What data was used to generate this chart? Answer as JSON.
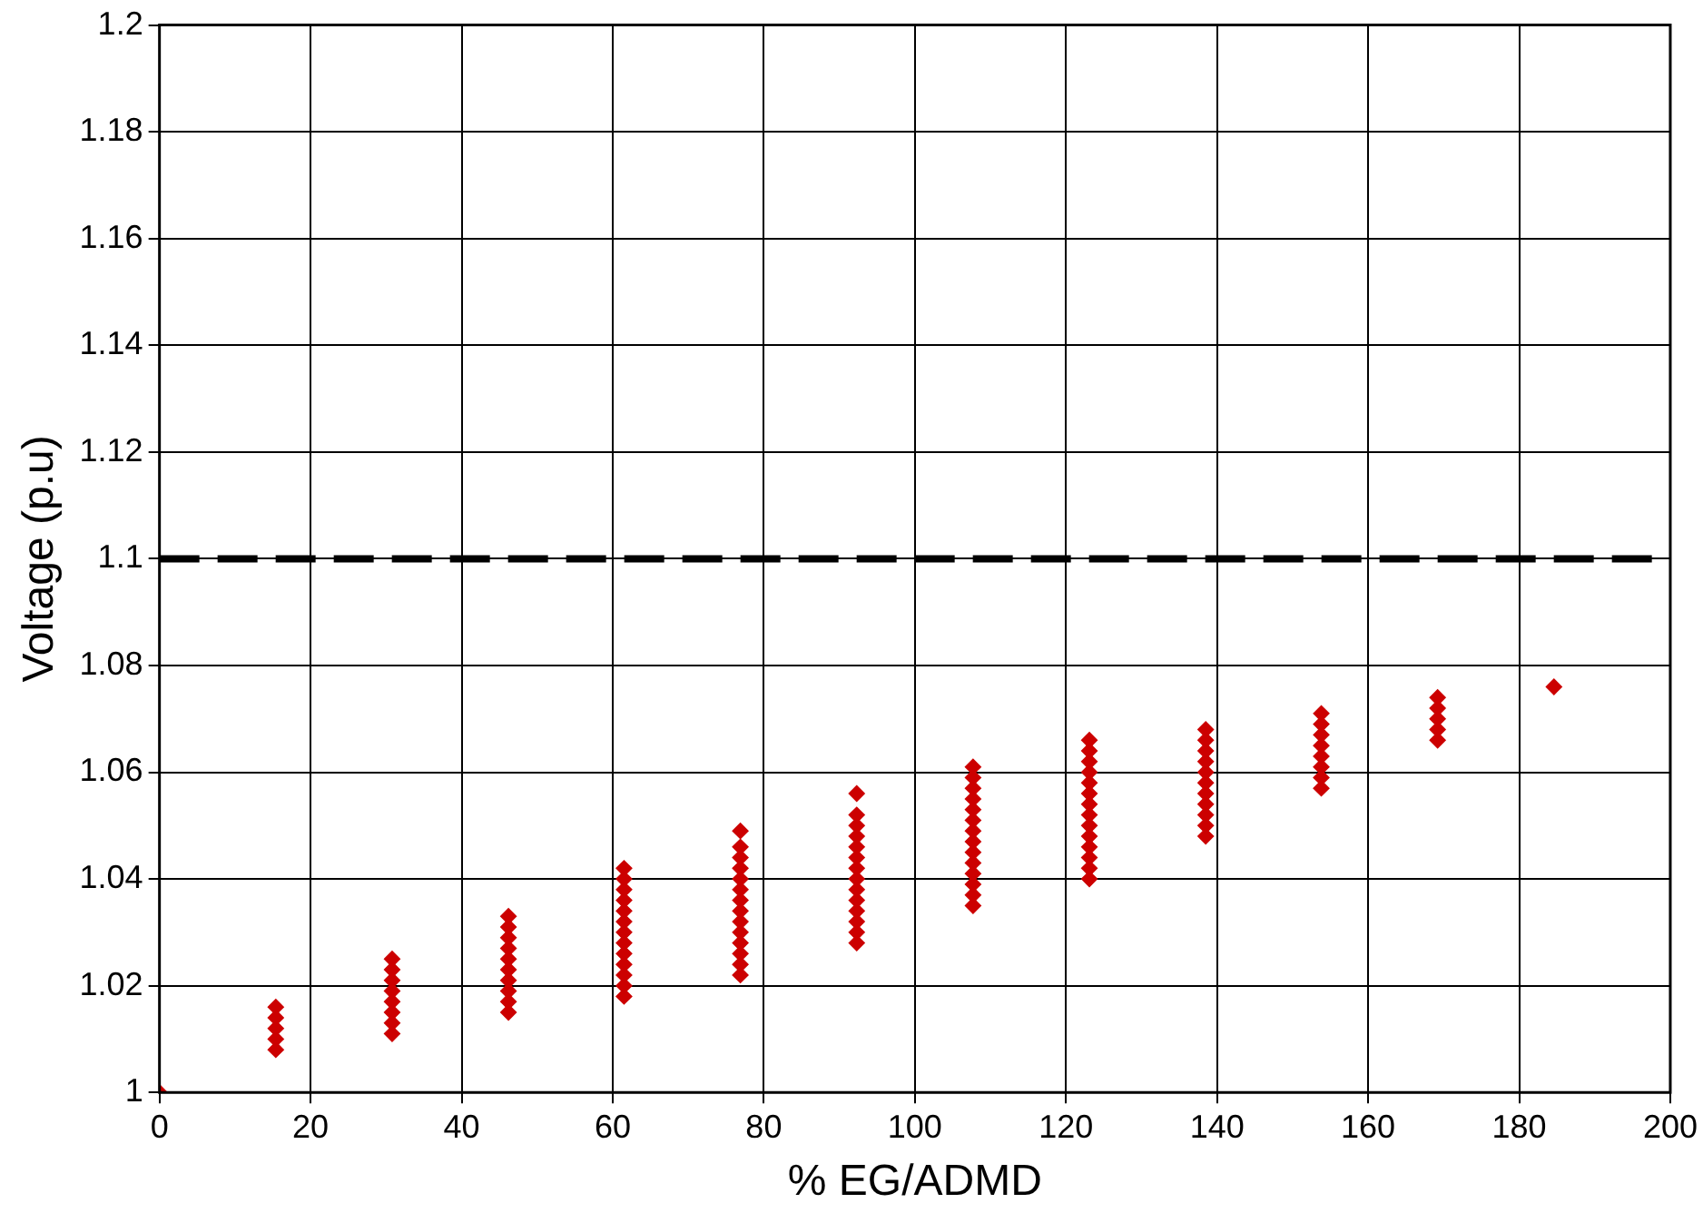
{
  "chart_data": {
    "type": "scatter",
    "xlabel": "% EG/ADMD",
    "ylabel": "Voltage (p.u)",
    "series": [
      {
        "color": "#cc0000",
        "x": [
          0,
          15.4,
          15.4,
          15.4,
          15.4,
          15.4,
          30.8,
          30.8,
          30.8,
          30.8,
          30.8,
          30.8,
          30.8,
          30.8,
          46.2,
          46.2,
          46.2,
          46.2,
          46.2,
          46.2,
          46.2,
          46.2,
          46.2,
          46.2,
          61.5,
          61.5,
          61.5,
          61.5,
          61.5,
          61.5,
          61.5,
          61.5,
          61.5,
          61.5,
          61.5,
          61.5,
          61.5,
          76.9,
          76.9,
          76.9,
          76.9,
          76.9,
          76.9,
          76.9,
          76.9,
          76.9,
          76.9,
          76.9,
          76.9,
          76.9,
          76.9,
          92.3,
          92.3,
          92.3,
          92.3,
          92.3,
          92.3,
          92.3,
          92.3,
          92.3,
          92.3,
          92.3,
          92.3,
          92.3,
          92.3,
          107.7,
          107.7,
          107.7,
          107.7,
          107.7,
          107.7,
          107.7,
          107.7,
          107.7,
          107.7,
          107.7,
          107.7,
          107.7,
          107.7,
          123.1,
          123.1,
          123.1,
          123.1,
          123.1,
          123.1,
          123.1,
          123.1,
          123.1,
          123.1,
          123.1,
          123.1,
          123.1,
          123.1,
          138.5,
          138.5,
          138.5,
          138.5,
          138.5,
          138.5,
          138.5,
          138.5,
          138.5,
          138.5,
          138.5,
          153.8,
          153.8,
          153.8,
          153.8,
          153.8,
          153.8,
          153.8,
          153.8,
          169.2,
          169.2,
          169.2,
          169.2,
          169.2,
          184.6
        ],
        "values": [
          1.0,
          1.008,
          1.01,
          1.012,
          1.014,
          1.016,
          1.011,
          1.013,
          1.015,
          1.017,
          1.019,
          1.021,
          1.023,
          1.025,
          1.015,
          1.017,
          1.019,
          1.021,
          1.023,
          1.025,
          1.027,
          1.029,
          1.031,
          1.033,
          1.018,
          1.02,
          1.022,
          1.024,
          1.026,
          1.028,
          1.03,
          1.032,
          1.034,
          1.036,
          1.038,
          1.04,
          1.042,
          1.022,
          1.024,
          1.026,
          1.028,
          1.03,
          1.032,
          1.034,
          1.036,
          1.038,
          1.04,
          1.042,
          1.044,
          1.046,
          1.049,
          1.028,
          1.03,
          1.032,
          1.034,
          1.036,
          1.038,
          1.04,
          1.042,
          1.044,
          1.046,
          1.048,
          1.05,
          1.052,
          1.056,
          1.035,
          1.037,
          1.039,
          1.041,
          1.043,
          1.045,
          1.047,
          1.049,
          1.051,
          1.053,
          1.055,
          1.057,
          1.059,
          1.061,
          1.04,
          1.042,
          1.044,
          1.046,
          1.048,
          1.05,
          1.052,
          1.054,
          1.056,
          1.058,
          1.06,
          1.062,
          1.064,
          1.066,
          1.048,
          1.05,
          1.052,
          1.054,
          1.056,
          1.058,
          1.06,
          1.062,
          1.064,
          1.066,
          1.068,
          1.057,
          1.059,
          1.061,
          1.063,
          1.065,
          1.067,
          1.069,
          1.071,
          1.066,
          1.068,
          1.07,
          1.072,
          1.074,
          1.076
        ]
      }
    ],
    "xlim": [
      0,
      200
    ],
    "xticks": [
      0,
      20,
      40,
      60,
      80,
      100,
      120,
      140,
      160,
      180,
      200
    ],
    "ylim": [
      1,
      1.2
    ],
    "yticks": [
      1,
      1.02,
      1.04,
      1.06,
      1.08,
      1.1,
      1.12,
      1.14,
      1.16,
      1.18,
      1.2
    ],
    "ref_lines": [
      {
        "axis": "y",
        "value": 1.1,
        "color": "#000000",
        "line_style": "dashed"
      }
    ],
    "grid": true,
    "legend": false,
    "marker": "diamond"
  }
}
